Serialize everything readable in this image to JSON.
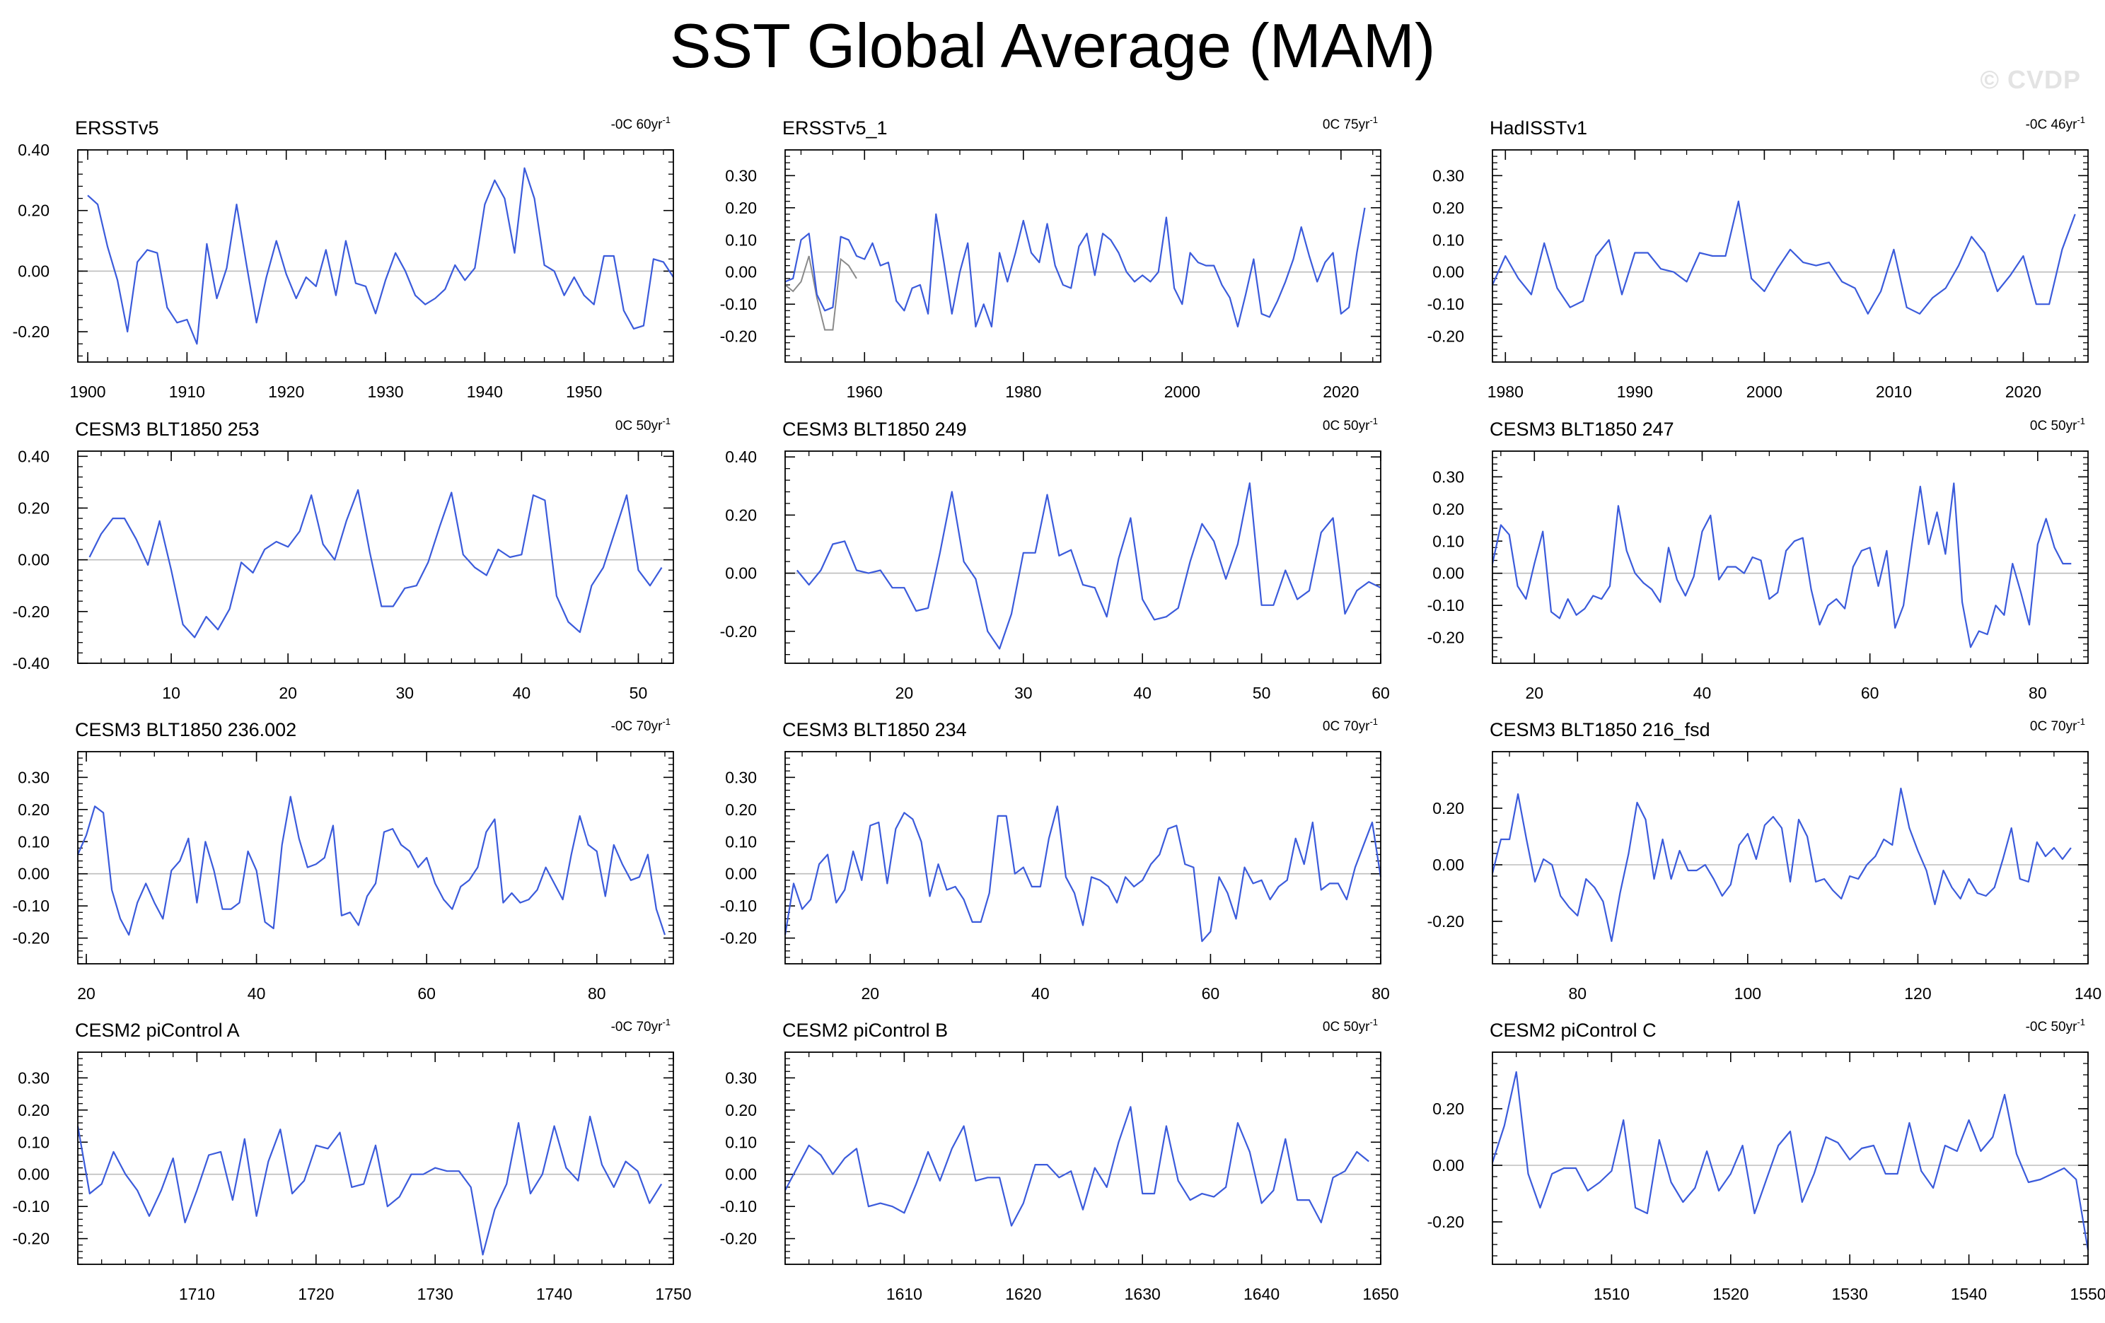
{
  "title": "SST Global Average (MAM)",
  "watermark": "© CVDP",
  "colors": {
    "series": "#3b5bdb",
    "obs_overlay": "#8a8a8a",
    "zero_line": "#bdbdbd",
    "frame": "#000000"
  },
  "chart_data": [
    {
      "type": "line",
      "title": "ERSSTv5",
      "trend": {
        "prefix": "-0C ",
        "value": "60yr",
        "sup": "-1"
      },
      "xlim": [
        1899,
        1959
      ],
      "ylim": [
        -0.3,
        0.4
      ],
      "xticks": [
        1900,
        1910,
        1920,
        1930,
        1940,
        1950
      ],
      "yticks": [
        0.4,
        0.2,
        0.0,
        -0.2
      ],
      "ytick_labels": [
        "0.40",
        "0.20",
        "0.00",
        "-0.20"
      ],
      "x_start": 1900,
      "values": [
        0.25,
        0.22,
        0.08,
        -0.03,
        -0.2,
        0.03,
        0.07,
        0.06,
        -0.12,
        -0.17,
        -0.16,
        -0.24,
        0.09,
        -0.09,
        0.01,
        0.22,
        0.02,
        -0.17,
        -0.02,
        0.1,
        -0.01,
        -0.09,
        -0.02,
        -0.05,
        0.07,
        -0.08,
        0.1,
        -0.04,
        -0.05,
        -0.14,
        -0.03,
        0.06,
        0.0,
        -0.08,
        -0.11,
        -0.09,
        -0.06,
        0.02,
        -0.03,
        0.01,
        0.22,
        0.3,
        0.24,
        0.06,
        0.34,
        0.24,
        0.02,
        0.0,
        -0.08,
        -0.02,
        -0.08,
        -0.11,
        0.05,
        0.05,
        -0.13,
        -0.19,
        -0.18,
        0.04,
        0.03,
        -0.02
      ]
    },
    {
      "type": "line",
      "title": "ERSSTv5_1",
      "trend": {
        "prefix": "0C ",
        "value": "75yr",
        "sup": "-1"
      },
      "xlim": [
        1950,
        2025
      ],
      "ylim": [
        -0.28,
        0.38
      ],
      "xticks": [
        1960,
        1980,
        2000,
        2020
      ],
      "yticks": [
        0.3,
        0.2,
        0.1,
        0.0,
        -0.1,
        -0.2
      ],
      "ytick_labels": [
        "0.30",
        "0.20",
        "0.10",
        "0.00",
        "-0.10",
        "-0.20"
      ],
      "x_start": 1950,
      "values": [
        -0.03,
        -0.02,
        0.1,
        0.12,
        -0.07,
        -0.12,
        -0.11,
        0.11,
        0.1,
        0.05,
        0.04,
        0.09,
        0.02,
        0.03,
        -0.09,
        -0.12,
        -0.05,
        -0.04,
        -0.13,
        0.18,
        0.03,
        -0.13,
        0.0,
        0.09,
        -0.17,
        -0.1,
        -0.17,
        0.06,
        -0.03,
        0.06,
        0.16,
        0.06,
        0.03,
        0.15,
        0.02,
        -0.04,
        -0.05,
        0.08,
        0.12,
        -0.01,
        0.12,
        0.1,
        0.06,
        0.0,
        -0.03,
        -0.01,
        -0.03,
        0.0,
        0.17,
        -0.05,
        -0.1,
        0.06,
        0.03,
        0.02,
        0.02,
        -0.04,
        -0.08,
        -0.17,
        -0.07,
        0.04,
        -0.13,
        -0.14,
        -0.09,
        -0.03,
        0.04,
        0.14,
        0.05,
        -0.03,
        0.03,
        0.06,
        -0.13,
        -0.11,
        0.06,
        0.2
      ],
      "overlay": {
        "x_start": 1950,
        "values": [
          -0.04,
          -0.06,
          -0.03,
          0.05,
          -0.08,
          -0.18,
          -0.18,
          0.04,
          0.02,
          -0.02
        ]
      }
    },
    {
      "type": "line",
      "title": "HadISSTv1",
      "trend": {
        "prefix": "-0C ",
        "value": "46yr",
        "sup": "-1"
      },
      "xlim": [
        1979,
        2025
      ],
      "ylim": [
        -0.28,
        0.38
      ],
      "xticks": [
        1980,
        1990,
        2000,
        2010,
        2020
      ],
      "yticks": [
        0.3,
        0.2,
        0.1,
        0.0,
        -0.1,
        -0.2
      ],
      "ytick_labels": [
        "0.30",
        "0.20",
        "0.10",
        "0.00",
        "-0.10",
        "-0.20"
      ],
      "x_start": 1979,
      "values": [
        -0.04,
        0.05,
        -0.02,
        -0.07,
        0.09,
        -0.05,
        -0.11,
        -0.09,
        0.05,
        0.1,
        -0.07,
        0.06,
        0.06,
        0.01,
        0.0,
        -0.03,
        0.06,
        0.05,
        0.05,
        0.22,
        -0.02,
        -0.06,
        0.01,
        0.07,
        0.03,
        0.02,
        0.03,
        -0.03,
        -0.05,
        -0.13,
        -0.06,
        0.07,
        -0.11,
        -0.13,
        -0.08,
        -0.05,
        0.02,
        0.11,
        0.06,
        -0.06,
        -0.01,
        0.05,
        -0.1,
        -0.1,
        0.07,
        0.18
      ]
    },
    {
      "type": "line",
      "title": "CESM3 BLT1850 253",
      "trend": {
        "prefix": "0C ",
        "value": "50yr",
        "sup": "-1"
      },
      "xlim": [
        2,
        53
      ],
      "ylim": [
        -0.4,
        0.42
      ],
      "xticks": [
        10,
        20,
        30,
        40,
        50
      ],
      "yticks": [
        0.4,
        0.2,
        0.0,
        -0.2,
        -0.4
      ],
      "ytick_labels": [
        "0.40",
        "0.20",
        "0.00",
        "-0.20",
        "-0.40"
      ],
      "x_start": 3,
      "values": [
        0.01,
        0.1,
        0.16,
        0.16,
        0.08,
        -0.02,
        0.15,
        -0.04,
        -0.25,
        -0.3,
        -0.22,
        -0.27,
        -0.19,
        -0.01,
        -0.05,
        0.04,
        0.07,
        0.05,
        0.11,
        0.25,
        0.06,
        0.0,
        0.15,
        0.27,
        0.03,
        -0.18,
        -0.18,
        -0.11,
        -0.1,
        -0.01,
        0.13,
        0.26,
        0.02,
        -0.03,
        -0.06,
        0.04,
        0.01,
        0.02,
        0.25,
        0.23,
        -0.14,
        -0.24,
        -0.28,
        -0.1,
        -0.03,
        0.11,
        0.25,
        -0.04,
        -0.1,
        -0.03
      ]
    },
    {
      "type": "line",
      "title": "CESM3 BLT1850 249",
      "trend": {
        "prefix": "0C ",
        "value": "50yr",
        "sup": "-1"
      },
      "xlim": [
        10,
        60
      ],
      "ylim": [
        -0.31,
        0.42
      ],
      "xticks": [
        20,
        30,
        40,
        50,
        60
      ],
      "yticks": [
        0.4,
        0.2,
        0.0,
        -0.2
      ],
      "ytick_labels": [
        "0.40",
        "0.20",
        "0.00",
        "-0.20"
      ],
      "x_start": 11,
      "values": [
        0.01,
        -0.04,
        0.01,
        0.1,
        0.11,
        0.01,
        0.0,
        0.01,
        -0.05,
        -0.05,
        -0.13,
        -0.12,
        0.07,
        0.28,
        0.04,
        -0.02,
        -0.2,
        -0.26,
        -0.14,
        0.07,
        0.07,
        0.27,
        0.06,
        0.08,
        -0.04,
        -0.05,
        -0.15,
        0.05,
        0.19,
        -0.09,
        -0.16,
        -0.15,
        -0.12,
        0.04,
        0.17,
        0.11,
        -0.02,
        0.1,
        0.31,
        -0.11,
        -0.11,
        0.01,
        -0.09,
        -0.06,
        0.14,
        0.19,
        -0.14,
        -0.06,
        -0.03,
        -0.05
      ]
    },
    {
      "type": "line",
      "title": "CESM3 BLT1850 247",
      "trend": {
        "prefix": "0C ",
        "value": "50yr",
        "sup": "-1"
      },
      "xlim": [
        15,
        86
      ],
      "ylim": [
        -0.28,
        0.38
      ],
      "xticks": [
        20,
        40,
        60,
        80
      ],
      "yticks": [
        0.3,
        0.2,
        0.1,
        0.0,
        -0.1,
        -0.2
      ],
      "ytick_labels": [
        "0.30",
        "0.20",
        "0.10",
        "0.00",
        "-0.10",
        "-0.20"
      ],
      "x_start": 15,
      "values": [
        0.03,
        0.15,
        0.12,
        -0.04,
        -0.08,
        0.03,
        0.13,
        -0.12,
        -0.14,
        -0.08,
        -0.13,
        -0.11,
        -0.07,
        -0.08,
        -0.04,
        0.21,
        0.07,
        0.0,
        -0.03,
        -0.05,
        -0.09,
        0.08,
        -0.02,
        -0.07,
        -0.01,
        0.13,
        0.18,
        -0.02,
        0.02,
        0.02,
        0.0,
        0.05,
        0.04,
        -0.08,
        -0.06,
        0.07,
        0.1,
        0.11,
        -0.05,
        -0.16,
        -0.1,
        -0.08,
        -0.11,
        0.02,
        0.07,
        0.08,
        -0.04,
        0.07,
        -0.17,
        -0.1,
        0.09,
        0.27,
        0.09,
        0.19,
        0.06,
        0.28,
        -0.09,
        -0.23,
        -0.18,
        -0.19,
        -0.1,
        -0.13,
        0.03,
        -0.06,
        -0.16,
        0.09,
        0.17,
        0.08,
        0.03,
        0.03
      ]
    },
    {
      "type": "line",
      "title": "CESM3 BLT1850 236.002",
      "trend": {
        "prefix": "-0C ",
        "value": "70yr",
        "sup": "-1"
      },
      "xlim": [
        19,
        89
      ],
      "ylim": [
        -0.28,
        0.38
      ],
      "xticks": [
        20,
        40,
        60,
        80
      ],
      "yticks": [
        0.3,
        0.2,
        0.1,
        0.0,
        -0.1,
        -0.2
      ],
      "ytick_labels": [
        "0.30",
        "0.20",
        "0.10",
        "0.00",
        "-0.10",
        "-0.20"
      ],
      "x_start": 19,
      "values": [
        0.06,
        0.12,
        0.21,
        0.19,
        -0.05,
        -0.14,
        -0.19,
        -0.09,
        -0.03,
        -0.09,
        -0.14,
        0.01,
        0.04,
        0.11,
        -0.09,
        0.1,
        0.01,
        -0.11,
        -0.11,
        -0.09,
        0.07,
        0.01,
        -0.15,
        -0.17,
        0.09,
        0.24,
        0.11,
        0.02,
        0.03,
        0.05,
        0.15,
        -0.13,
        -0.12,
        -0.16,
        -0.07,
        -0.03,
        0.13,
        0.14,
        0.09,
        0.07,
        0.02,
        0.05,
        -0.03,
        -0.08,
        -0.11,
        -0.04,
        -0.02,
        0.02,
        0.13,
        0.17,
        -0.09,
        -0.06,
        -0.09,
        -0.08,
        -0.05,
        0.02,
        -0.03,
        -0.08,
        0.06,
        0.18,
        0.09,
        0.07,
        -0.07,
        0.09,
        0.03,
        -0.02,
        -0.01,
        0.06,
        -0.11,
        -0.19
      ]
    },
    {
      "type": "line",
      "title": "CESM3 BLT1850 234",
      "trend": {
        "prefix": "0C ",
        "value": "70yr",
        "sup": "-1"
      },
      "xlim": [
        10,
        80
      ],
      "ylim": [
        -0.28,
        0.38
      ],
      "xticks": [
        20,
        40,
        60,
        80
      ],
      "yticks": [
        0.3,
        0.2,
        0.1,
        0.0,
        -0.1,
        -0.2
      ],
      "ytick_labels": [
        "0.30",
        "0.20",
        "0.10",
        "0.00",
        "-0.10",
        "-0.20"
      ],
      "x_start": 10,
      "values": [
        -0.19,
        -0.03,
        -0.11,
        -0.08,
        0.03,
        0.06,
        -0.09,
        -0.05,
        0.07,
        -0.02,
        0.15,
        0.16,
        -0.03,
        0.14,
        0.19,
        0.17,
        0.1,
        -0.07,
        0.03,
        -0.05,
        -0.04,
        -0.08,
        -0.15,
        -0.15,
        -0.06,
        0.18,
        0.18,
        0.0,
        0.02,
        -0.04,
        -0.04,
        0.11,
        0.21,
        -0.01,
        -0.06,
        -0.16,
        -0.01,
        -0.02,
        -0.04,
        -0.09,
        -0.01,
        -0.04,
        -0.02,
        0.03,
        0.06,
        0.14,
        0.15,
        0.03,
        0.02,
        -0.21,
        -0.18,
        -0.01,
        -0.06,
        -0.14,
        0.02,
        -0.03,
        -0.02,
        -0.08,
        -0.04,
        -0.02,
        0.11,
        0.03,
        0.16,
        -0.05,
        -0.03,
        -0.03,
        -0.08,
        0.02,
        0.09,
        0.16,
        -0.01
      ]
    },
    {
      "type": "line",
      "title": "CESM3 BLT1850 216_fsd",
      "trend": {
        "prefix": "0C ",
        "value": "70yr",
        "sup": "-1"
      },
      "xlim": [
        70,
        140
      ],
      "ylim": [
        -0.35,
        0.4
      ],
      "xticks": [
        80,
        100,
        120,
        140
      ],
      "yticks": [
        0.2,
        0.0,
        -0.2
      ],
      "ytick_labels": [
        "0.20",
        "0.00",
        "-0.20"
      ],
      "x_start": 70,
      "values": [
        -0.03,
        0.09,
        0.09,
        0.25,
        0.09,
        -0.06,
        0.02,
        0.0,
        -0.11,
        -0.15,
        -0.18,
        -0.05,
        -0.08,
        -0.13,
        -0.27,
        -0.1,
        0.04,
        0.22,
        0.16,
        -0.05,
        0.09,
        -0.05,
        0.05,
        -0.02,
        -0.02,
        0.0,
        -0.05,
        -0.11,
        -0.07,
        0.07,
        0.11,
        0.02,
        0.14,
        0.17,
        0.13,
        -0.06,
        0.16,
        0.1,
        -0.06,
        -0.05,
        -0.09,
        -0.12,
        -0.04,
        -0.05,
        0.0,
        0.03,
        0.09,
        0.07,
        0.27,
        0.13,
        0.05,
        -0.02,
        -0.14,
        -0.02,
        -0.08,
        -0.12,
        -0.05,
        -0.1,
        -0.11,
        -0.08,
        0.02,
        0.13,
        -0.05,
        -0.06,
        0.08,
        0.03,
        0.06,
        0.02,
        0.06
      ]
    },
    {
      "type": "line",
      "title": "CESM2 piControl A",
      "trend": {
        "prefix": "-0C ",
        "value": "70yr",
        "sup": "-1"
      },
      "xlim": [
        1700,
        1750
      ],
      "ylim": [
        -0.28,
        0.38
      ],
      "xticks": [
        1710,
        1720,
        1730,
        1740,
        1750
      ],
      "yticks": [
        0.3,
        0.2,
        0.1,
        0.0,
        -0.1,
        -0.2
      ],
      "ytick_labels": [
        "0.30",
        "0.20",
        "0.10",
        "0.00",
        "-0.10",
        "-0.20"
      ],
      "x_start": 1700,
      "values": [
        0.15,
        -0.06,
        -0.03,
        0.07,
        0.0,
        -0.05,
        -0.13,
        -0.05,
        0.05,
        -0.15,
        -0.05,
        0.06,
        0.07,
        -0.08,
        0.11,
        -0.13,
        0.04,
        0.14,
        -0.06,
        -0.02,
        0.09,
        0.08,
        0.13,
        -0.04,
        -0.03,
        0.09,
        -0.1,
        -0.07,
        0.0,
        0.0,
        0.02,
        0.01,
        0.01,
        -0.04,
        -0.25,
        -0.11,
        -0.03,
        0.16,
        -0.06,
        0.0,
        0.15,
        0.02,
        -0.02,
        0.18,
        0.03,
        -0.04,
        0.04,
        0.01,
        -0.09,
        -0.03
      ]
    },
    {
      "type": "line",
      "title": "CESM2 piControl B",
      "trend": {
        "prefix": "0C ",
        "value": "50yr",
        "sup": "-1"
      },
      "xlim": [
        1600,
        1650
      ],
      "ylim": [
        -0.28,
        0.38
      ],
      "xticks": [
        1610,
        1620,
        1630,
        1640,
        1650
      ],
      "yticks": [
        0.3,
        0.2,
        0.1,
        0.0,
        -0.1,
        -0.2
      ],
      "ytick_labels": [
        "0.30",
        "0.20",
        "0.10",
        "0.00",
        "-0.10",
        "-0.20"
      ],
      "x_start": 1600,
      "values": [
        -0.05,
        0.02,
        0.09,
        0.06,
        0.0,
        0.05,
        0.08,
        -0.1,
        -0.09,
        -0.1,
        -0.12,
        -0.03,
        0.07,
        -0.02,
        0.08,
        0.15,
        -0.02,
        -0.01,
        -0.01,
        -0.16,
        -0.09,
        0.03,
        0.03,
        -0.01,
        0.01,
        -0.11,
        0.02,
        -0.04,
        0.1,
        0.21,
        -0.06,
        -0.06,
        0.15,
        -0.02,
        -0.08,
        -0.06,
        -0.07,
        -0.04,
        0.16,
        0.07,
        -0.09,
        -0.05,
        0.11,
        -0.08,
        -0.08,
        -0.15,
        -0.01,
        0.01,
        0.07,
        0.04
      ]
    },
    {
      "type": "line",
      "title": "CESM2 piControl C",
      "trend": {
        "prefix": "-0C ",
        "value": "50yr",
        "sup": "-1"
      },
      "xlim": [
        1500,
        1550
      ],
      "ylim": [
        -0.35,
        0.4
      ],
      "xticks": [
        1510,
        1520,
        1530,
        1540,
        1550
      ],
      "yticks": [
        0.2,
        0.0,
        -0.2
      ],
      "ytick_labels": [
        "0.20",
        "0.00",
        "-0.20"
      ],
      "x_start": 1500,
      "values": [
        0.01,
        0.14,
        0.33,
        -0.03,
        -0.15,
        -0.03,
        -0.01,
        -0.01,
        -0.09,
        -0.06,
        -0.02,
        0.16,
        -0.15,
        -0.17,
        0.09,
        -0.06,
        -0.13,
        -0.08,
        0.05,
        -0.09,
        -0.03,
        0.07,
        -0.17,
        -0.05,
        0.07,
        0.12,
        -0.13,
        -0.03,
        0.1,
        0.08,
        0.02,
        0.06,
        0.07,
        -0.03,
        -0.03,
        0.15,
        -0.02,
        -0.08,
        0.07,
        0.05,
        0.16,
        0.05,
        0.1,
        0.25,
        0.04,
        -0.06,
        -0.05,
        -0.03,
        -0.01,
        -0.05,
        -0.3
      ]
    }
  ]
}
